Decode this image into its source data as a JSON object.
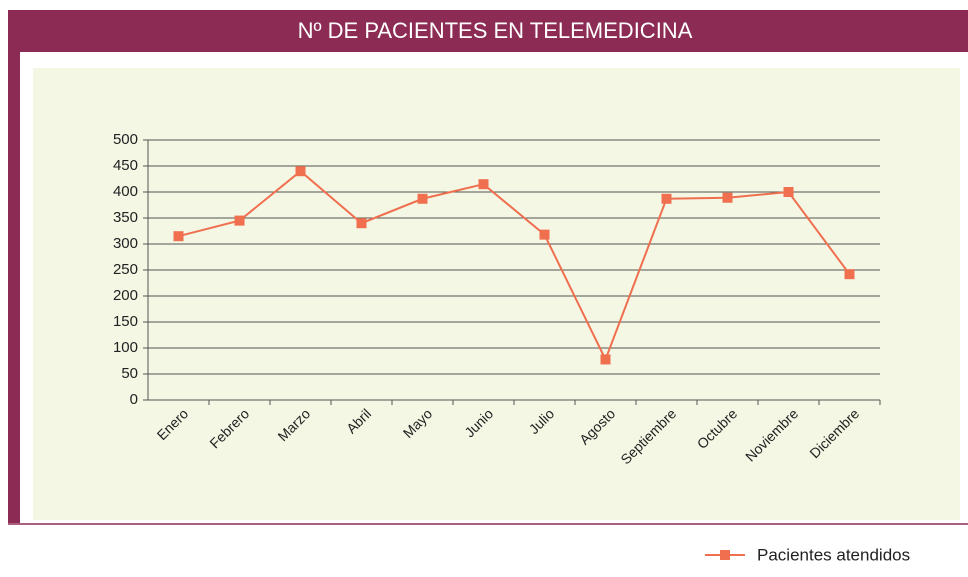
{
  "chart_data": {
    "type": "line",
    "title": "Nº DE PACIENTES EN TELEMEDICINA",
    "categories": [
      "Enero",
      "Febrero",
      "Marzo",
      "Abril",
      "Mayo",
      "Junio",
      "Julio",
      "Agosto",
      "Septiembre",
      "Octubre",
      "Noviembre",
      "Diciembre"
    ],
    "series": [
      {
        "name": "Pacientes atendidos",
        "color": "#ef6f4f",
        "values": [
          315,
          345,
          440,
          340,
          387,
          415,
          318,
          78,
          387,
          389,
          400,
          242
        ]
      }
    ],
    "ylim": [
      0,
      500
    ],
    "yticks": [
      0,
      50,
      100,
      150,
      200,
      250,
      300,
      350,
      400,
      450,
      500
    ],
    "grid": true,
    "legend": "bottom-right"
  }
}
